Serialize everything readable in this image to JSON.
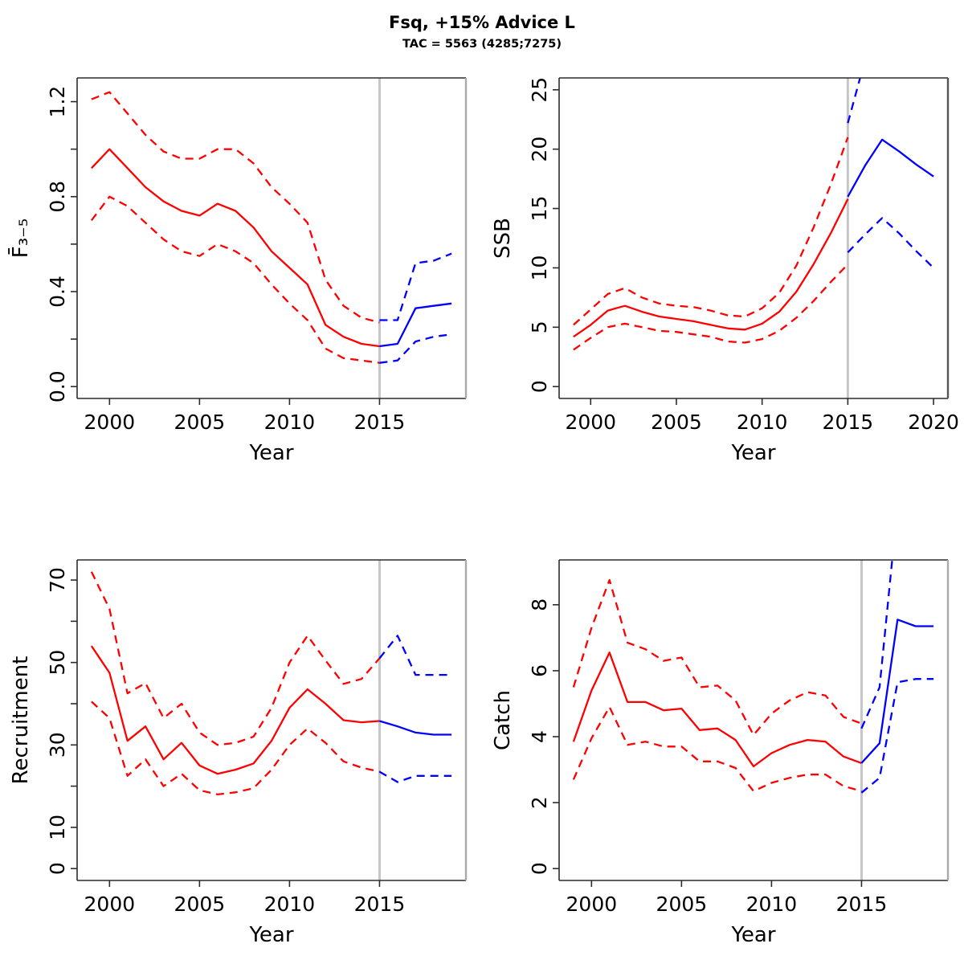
{
  "title": "Fsq, +15% Advice L",
  "subtitle": "TAC = 5563 (4285;7275)",
  "colors": {
    "history": "#FF0000",
    "forecast": "#0000FF",
    "divider": "#C6C6C6",
    "frame": "#2b2b2b",
    "text": "#000000"
  },
  "chart_data": [
    {
      "type": "line",
      "name": "fbar",
      "xlabel": "Year",
      "ylabel": "F̄₃₋₅",
      "xlim": [
        1999,
        2019
      ],
      "ylim": [
        0,
        1.25
      ],
      "x_ticks": [
        2000,
        2005,
        2010,
        2015
      ],
      "y_ticks": [
        0,
        0.2,
        0.4,
        0.6,
        0.8,
        1.0,
        1.2
      ],
      "y_tick_labels": [
        "0.0",
        "",
        "0.4",
        "",
        "0.8",
        "",
        "1.2"
      ],
      "divider_x": 2015,
      "right_edge": "#A9A9A9",
      "series": [
        {
          "name": "hist-median",
          "color": "history",
          "dashed": false,
          "x": [
            1999,
            2000,
            2001,
            2002,
            2003,
            2004,
            2005,
            2006,
            2007,
            2008,
            2009,
            2010,
            2011,
            2012,
            2013,
            2014,
            2015
          ],
          "y": [
            0.92,
            1.0,
            0.92,
            0.84,
            0.78,
            0.74,
            0.72,
            0.77,
            0.74,
            0.67,
            0.57,
            0.5,
            0.43,
            0.26,
            0.21,
            0.18,
            0.17
          ]
        },
        {
          "name": "hist-upper",
          "color": "history",
          "dashed": true,
          "x": [
            1999,
            2000,
            2001,
            2002,
            2003,
            2004,
            2005,
            2006,
            2007,
            2008,
            2009,
            2010,
            2011,
            2012,
            2013,
            2014,
            2015
          ],
          "y": [
            1.21,
            1.24,
            1.15,
            1.06,
            0.99,
            0.96,
            0.96,
            1.0,
            1.0,
            0.94,
            0.84,
            0.77,
            0.69,
            0.45,
            0.34,
            0.29,
            0.27
          ]
        },
        {
          "name": "hist-lower",
          "color": "history",
          "dashed": true,
          "x": [
            1999,
            2000,
            2001,
            2002,
            2003,
            2004,
            2005,
            2006,
            2007,
            2008,
            2009,
            2010,
            2011,
            2012,
            2013,
            2014,
            2015
          ],
          "y": [
            0.7,
            0.8,
            0.76,
            0.69,
            0.62,
            0.57,
            0.55,
            0.6,
            0.57,
            0.52,
            0.43,
            0.35,
            0.28,
            0.16,
            0.12,
            0.11,
            0.1
          ]
        },
        {
          "name": "forecast-median",
          "color": "forecast",
          "dashed": false,
          "x": [
            2015,
            2016,
            2017,
            2018,
            2019
          ],
          "y": [
            0.17,
            0.18,
            0.33,
            0.34,
            0.35
          ]
        },
        {
          "name": "forecast-upper",
          "color": "forecast",
          "dashed": true,
          "x": [
            2015,
            2016,
            2017,
            2018,
            2019
          ],
          "y": [
            0.28,
            0.28,
            0.52,
            0.53,
            0.56
          ]
        },
        {
          "name": "forecast-lower",
          "color": "forecast",
          "dashed": true,
          "x": [
            2015,
            2016,
            2017,
            2018,
            2019
          ],
          "y": [
            0.1,
            0.11,
            0.19,
            0.21,
            0.22
          ]
        }
      ]
    },
    {
      "type": "line",
      "name": "ssb",
      "xlabel": "Year",
      "ylabel": "SSB",
      "xlim": [
        1999,
        2020
      ],
      "ylim": [
        0,
        25
      ],
      "x_ticks": [
        2000,
        2005,
        2010,
        2015,
        2020
      ],
      "y_ticks": [
        0,
        5,
        10,
        15,
        20,
        25
      ],
      "y_tick_labels": [
        "0",
        "5",
        "10",
        "15",
        "20",
        "25"
      ],
      "divider_x": 2015,
      "right_edge": "#555555",
      "series": [
        {
          "name": "hist-median",
          "color": "history",
          "dashed": false,
          "x": [
            1999,
            2000,
            2001,
            2002,
            2003,
            2004,
            2005,
            2006,
            2007,
            2008,
            2009,
            2010,
            2011,
            2012,
            2013,
            2014,
            2015
          ],
          "y": [
            4.2,
            5.2,
            6.4,
            6.8,
            6.3,
            5.9,
            5.7,
            5.5,
            5.2,
            4.9,
            4.8,
            5.3,
            6.3,
            8.0,
            10.3,
            12.9,
            15.8
          ]
        },
        {
          "name": "hist-upper",
          "color": "history",
          "dashed": true,
          "x": [
            1999,
            2000,
            2001,
            2002,
            2003,
            2004,
            2005,
            2006,
            2007,
            2008,
            2009,
            2010,
            2011,
            2012,
            2013,
            2014,
            2015
          ],
          "y": [
            5.2,
            6.5,
            7.8,
            8.3,
            7.5,
            7.0,
            6.8,
            6.7,
            6.4,
            6.0,
            5.9,
            6.6,
            7.9,
            10.2,
            13.4,
            17.0,
            21.0
          ]
        },
        {
          "name": "hist-lower",
          "color": "history",
          "dashed": true,
          "x": [
            1999,
            2000,
            2001,
            2002,
            2003,
            2004,
            2005,
            2006,
            2007,
            2008,
            2009,
            2010,
            2011,
            2012,
            2013,
            2014,
            2015
          ],
          "y": [
            3.1,
            4.1,
            5.0,
            5.3,
            5.0,
            4.7,
            4.6,
            4.4,
            4.2,
            3.8,
            3.7,
            4.0,
            4.7,
            5.8,
            7.2,
            8.8,
            10.3
          ]
        },
        {
          "name": "forecast-median",
          "color": "forecast",
          "dashed": false,
          "x": [
            2015,
            2016,
            2017,
            2018,
            2019,
            2020
          ],
          "y": [
            16.0,
            18.6,
            20.8,
            19.8,
            18.7,
            17.7
          ]
        },
        {
          "name": "forecast-upper",
          "color": "forecast",
          "dashed": true,
          "x": [
            2015,
            2016
          ],
          "y": [
            22.2,
            27.5
          ]
        },
        {
          "name": "forecast-lower",
          "color": "forecast",
          "dashed": true,
          "x": [
            2015,
            2016,
            2017,
            2018,
            2019,
            2020
          ],
          "y": [
            11.3,
            12.8,
            14.2,
            12.9,
            11.4,
            10.0
          ]
        }
      ]
    },
    {
      "type": "line",
      "name": "recruitment",
      "xlabel": "Year",
      "ylabel": "Recruitment",
      "xlim": [
        1999,
        2019
      ],
      "ylim": [
        0,
        72
      ],
      "x_ticks": [
        2000,
        2005,
        2010,
        2015
      ],
      "y_ticks": [
        0,
        10,
        20,
        30,
        40,
        50,
        60,
        70
      ],
      "y_tick_labels": [
        "0",
        "10",
        "",
        "30",
        "",
        "50",
        "",
        "70"
      ],
      "divider_x": 2015,
      "right_edge": "#A9A9A9",
      "series": [
        {
          "name": "hist-median",
          "color": "history",
          "dashed": false,
          "x": [
            1999,
            2000,
            2001,
            2002,
            2003,
            2004,
            2005,
            2006,
            2007,
            2008,
            2009,
            2010,
            2011,
            2012,
            2013,
            2014,
            2015
          ],
          "y": [
            54,
            47.5,
            31,
            34.5,
            26.5,
            30.5,
            25,
            23,
            24,
            25.5,
            31,
            39,
            43.5,
            40,
            36,
            35.5,
            35.8
          ]
        },
        {
          "name": "hist-upper",
          "color": "history",
          "dashed": true,
          "x": [
            1999,
            2000,
            2001,
            2002,
            2003,
            2004,
            2005,
            2006,
            2007,
            2008,
            2009,
            2010,
            2011,
            2012,
            2013,
            2014,
            2015
          ],
          "y": [
            72,
            63,
            42.5,
            45,
            36.5,
            40,
            33,
            30,
            30.5,
            32,
            39,
            50,
            56.5,
            50.5,
            44.8,
            46,
            51
          ]
        },
        {
          "name": "hist-lower",
          "color": "history",
          "dashed": true,
          "x": [
            1999,
            2000,
            2001,
            2002,
            2003,
            2004,
            2005,
            2006,
            2007,
            2008,
            2009,
            2010,
            2011,
            2012,
            2013,
            2014,
            2015
          ],
          "y": [
            40.5,
            36.5,
            22.5,
            26.5,
            20,
            23,
            19,
            18,
            18.5,
            19.5,
            24,
            30,
            34,
            30.5,
            26,
            24.5,
            23.5
          ]
        },
        {
          "name": "forecast-median",
          "color": "forecast",
          "dashed": false,
          "x": [
            2015,
            2016,
            2017,
            2018,
            2019
          ],
          "y": [
            35.8,
            34.5,
            33,
            32.5,
            32.5
          ]
        },
        {
          "name": "forecast-upper",
          "color": "forecast",
          "dashed": true,
          "x": [
            2015,
            2016,
            2017,
            2018,
            2019
          ],
          "y": [
            51,
            56.5,
            47,
            47,
            47
          ]
        },
        {
          "name": "forecast-lower",
          "color": "forecast",
          "dashed": true,
          "x": [
            2015,
            2016,
            2017,
            2018,
            2019
          ],
          "y": [
            23.5,
            21,
            22.5,
            22.5,
            22.5
          ]
        }
      ]
    },
    {
      "type": "line",
      "name": "catch",
      "xlabel": "Year",
      "ylabel": "Catch",
      "xlim": [
        1999,
        2019
      ],
      "ylim": [
        0,
        9
      ],
      "x_ticks": [
        2000,
        2005,
        2010,
        2015
      ],
      "y_ticks": [
        0,
        2,
        4,
        6,
        8
      ],
      "y_tick_labels": [
        "0",
        "2",
        "4",
        "6",
        "8"
      ],
      "divider_x": 2015,
      "right_edge": "#A9A9A9",
      "series": [
        {
          "name": "hist-median",
          "color": "history",
          "dashed": false,
          "x": [
            1999,
            2000,
            2001,
            2002,
            2003,
            2004,
            2005,
            2006,
            2007,
            2008,
            2009,
            2010,
            2011,
            2012,
            2013,
            2014,
            2015
          ],
          "y": [
            3.85,
            5.4,
            6.55,
            5.05,
            5.05,
            4.8,
            4.85,
            4.2,
            4.25,
            3.9,
            3.1,
            3.5,
            3.75,
            3.9,
            3.85,
            3.4,
            3.2
          ]
        },
        {
          "name": "hist-upper",
          "color": "history",
          "dashed": true,
          "x": [
            1999,
            2000,
            2001,
            2002,
            2003,
            2004,
            2005,
            2006,
            2007,
            2008,
            2009,
            2010,
            2011,
            2012,
            2013,
            2014,
            2015
          ],
          "y": [
            5.5,
            7.3,
            8.75,
            6.85,
            6.65,
            6.3,
            6.4,
            5.5,
            5.55,
            5.1,
            4.05,
            4.7,
            5.1,
            5.35,
            5.25,
            4.6,
            4.4
          ]
        },
        {
          "name": "hist-lower",
          "color": "history",
          "dashed": true,
          "x": [
            1999,
            2000,
            2001,
            2002,
            2003,
            2004,
            2005,
            2006,
            2007,
            2008,
            2009,
            2010,
            2011,
            2012,
            2013,
            2014,
            2015
          ],
          "y": [
            2.7,
            3.95,
            4.9,
            3.75,
            3.85,
            3.7,
            3.7,
            3.25,
            3.25,
            3.05,
            2.35,
            2.6,
            2.75,
            2.85,
            2.85,
            2.5,
            2.35
          ]
        },
        {
          "name": "forecast-median",
          "color": "forecast",
          "dashed": false,
          "x": [
            2015,
            2016,
            2017,
            2018,
            2019
          ],
          "y": [
            3.2,
            3.8,
            7.55,
            7.35,
            7.35
          ]
        },
        {
          "name": "forecast-upper",
          "color": "forecast",
          "dashed": true,
          "x": [
            2015,
            2016,
            2017
          ],
          "y": [
            4.25,
            5.5,
            11.0
          ]
        },
        {
          "name": "forecast-lower",
          "color": "forecast",
          "dashed": true,
          "x": [
            2015,
            2016,
            2017,
            2018,
            2019
          ],
          "y": [
            2.3,
            2.75,
            5.65,
            5.75,
            5.75
          ]
        }
      ]
    }
  ]
}
